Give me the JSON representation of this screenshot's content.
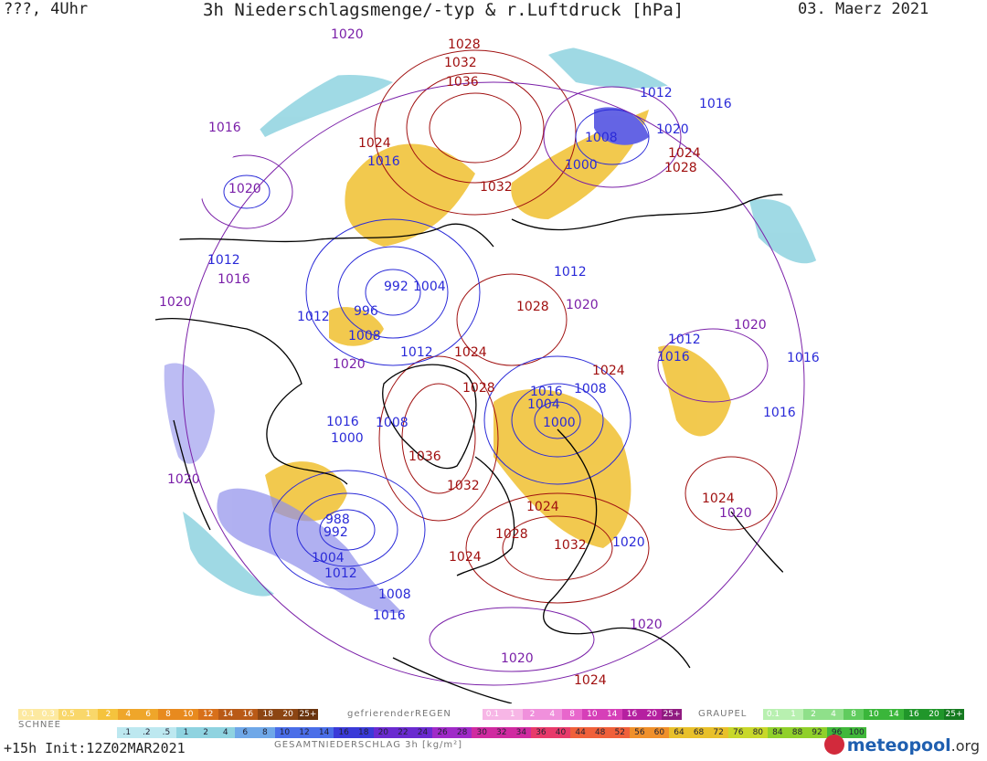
{
  "header": {
    "left": "???, 4Uhr",
    "title": "3h Niederschlagsmenge/-typ & r.Luftdruck [hPa]",
    "date": "03. Maerz 2021"
  },
  "colors": {
    "isobar_low": "#2a2ad8",
    "isobar_mid": "#7a1fa8",
    "isobar_high": "#a01010",
    "snow": "#f0c030",
    "rain": "#8fd3e0",
    "coast": "#000000"
  },
  "pressure_labels": [
    {
      "v": "1020",
      "c": "mid"
    },
    {
      "v": "1028",
      "c": "high"
    },
    {
      "v": "1032",
      "c": "high"
    },
    {
      "v": "1036",
      "c": "high"
    },
    {
      "v": "1012",
      "c": "low"
    },
    {
      "v": "1016",
      "c": "low"
    },
    {
      "v": "1016",
      "c": "mid"
    },
    {
      "v": "1008",
      "c": "low"
    },
    {
      "v": "1020",
      "c": "low"
    },
    {
      "v": "1024",
      "c": "high"
    },
    {
      "v": "1028",
      "c": "high"
    },
    {
      "v": "1016",
      "c": "low"
    },
    {
      "v": "1000",
      "c": "low"
    },
    {
      "v": "1032",
      "c": "high"
    },
    {
      "v": "1024",
      "c": "high"
    },
    {
      "v": "1020",
      "c": "mid"
    },
    {
      "v": "1012",
      "c": "low"
    },
    {
      "v": "1016",
      "c": "mid"
    },
    {
      "v": "992",
      "c": "low"
    },
    {
      "v": "1004",
      "c": "low"
    },
    {
      "v": "1012",
      "c": "low"
    },
    {
      "v": "1020",
      "c": "mid"
    },
    {
      "v": "1028",
      "c": "high"
    },
    {
      "v": "1020",
      "c": "mid"
    },
    {
      "v": "996",
      "c": "low"
    },
    {
      "v": "1012",
      "c": "low"
    },
    {
      "v": "1008",
      "c": "low"
    },
    {
      "v": "1024",
      "c": "high"
    },
    {
      "v": "1012",
      "c": "low"
    },
    {
      "v": "1012",
      "c": "low"
    },
    {
      "v": "1020",
      "c": "mid"
    },
    {
      "v": "1016",
      "c": "low"
    },
    {
      "v": "1016",
      "c": "low"
    },
    {
      "v": "1020",
      "c": "mid"
    },
    {
      "v": "1024",
      "c": "high"
    },
    {
      "v": "1028",
      "c": "high"
    },
    {
      "v": "1016",
      "c": "low"
    },
    {
      "v": "1008",
      "c": "low"
    },
    {
      "v": "1004",
      "c": "low"
    },
    {
      "v": "1000",
      "c": "low"
    },
    {
      "v": "1016",
      "c": "low"
    },
    {
      "v": "1008",
      "c": "low"
    },
    {
      "v": "1000",
      "c": "low"
    },
    {
      "v": "1036",
      "c": "high"
    },
    {
      "v": "1016",
      "c": "low"
    },
    {
      "v": "1032",
      "c": "high"
    },
    {
      "v": "1020",
      "c": "mid"
    },
    {
      "v": "1024",
      "c": "high"
    },
    {
      "v": "988",
      "c": "low"
    },
    {
      "v": "992",
      "c": "low"
    },
    {
      "v": "1028",
      "c": "high"
    },
    {
      "v": "1024",
      "c": "high"
    },
    {
      "v": "1020",
      "c": "mid"
    },
    {
      "v": "1004",
      "c": "low"
    },
    {
      "v": "1032",
      "c": "high"
    },
    {
      "v": "1012",
      "c": "low"
    },
    {
      "v": "1020",
      "c": "low"
    },
    {
      "v": "1024",
      "c": "high"
    },
    {
      "v": "1008",
      "c": "low"
    },
    {
      "v": "1016",
      "c": "low"
    },
    {
      "v": "1020",
      "c": "mid"
    },
    {
      "v": "1020",
      "c": "mid"
    },
    {
      "v": "1024",
      "c": "high"
    }
  ],
  "legend": {
    "snow_label": "SCHNEE",
    "snow_ticks": [
      "0.1",
      "0.3",
      "0.5",
      "1",
      "2",
      "4",
      "6",
      "8",
      "10",
      "12",
      "14",
      "16",
      "18",
      "20",
      "25+"
    ],
    "freezing_label": "gefrierenderREGEN",
    "freezing_ticks": [
      "0.1",
      "1",
      "2",
      "4",
      "8",
      "10",
      "14",
      "16",
      "20",
      "25+"
    ],
    "graupel_label": "GRAUPEL",
    "graupel_ticks": [
      "0.1",
      "1",
      "2",
      "4",
      "8",
      "10",
      "14",
      "16",
      "20",
      "25+"
    ],
    "total_ticks": [
      ".1",
      ".2",
      ".5",
      "1",
      "2",
      "4",
      "6",
      "8",
      "10",
      "12",
      "14",
      "16",
      "18",
      "20",
      "22",
      "24",
      "26",
      "28",
      "30",
      "32",
      "34",
      "36",
      "40",
      "44",
      "48",
      "52",
      "56",
      "60",
      "64",
      "68",
      "72",
      "76",
      "80",
      "84",
      "88",
      "92",
      "96",
      "100"
    ],
    "total_label": "GESAMTNIEDERSCHLAG 3h [kg/m²]"
  },
  "footer": {
    "init": "+15h Init:12Z02MAR2021",
    "brand": "meteo",
    "brand2": "pool",
    "brand_suffix": ".org"
  }
}
